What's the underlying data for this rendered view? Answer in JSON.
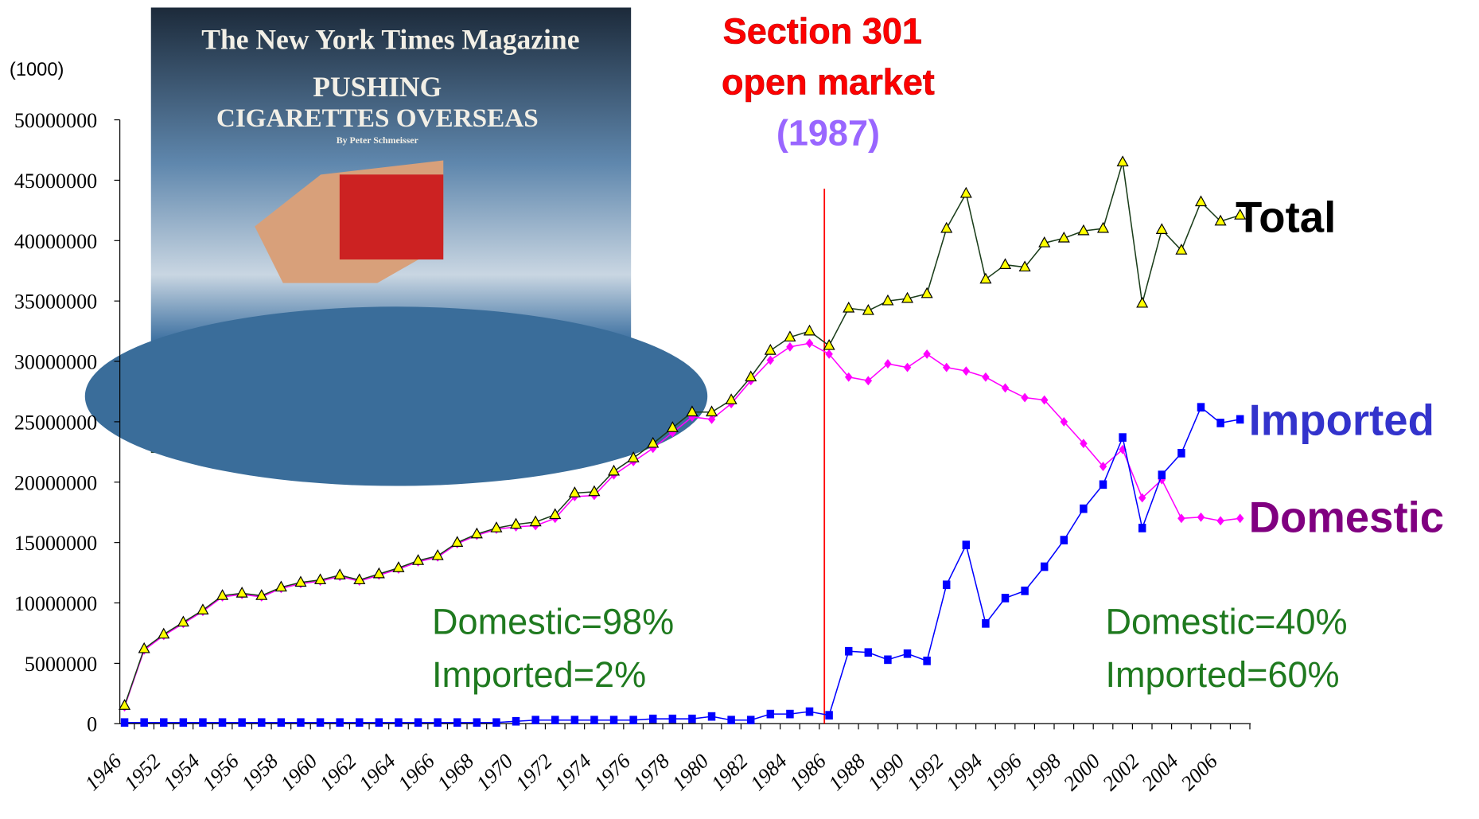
{
  "chart_data": {
    "type": "line",
    "title": [
      "Section 301",
      "open market"
    ],
    "subtitle": "(1987)",
    "y_unit": "(1000)",
    "annotations": [
      [
        "Domestic=98%",
        "Imported=2%"
      ],
      [
        "Domestic=40%",
        "Imported=60%"
      ]
    ],
    "image_texts": [
      "The New York Times Magazine",
      "PUSHING",
      "CIGARETTES OVERSEAS",
      "By Peter Schmeisser"
    ],
    "categories": [
      "1946",
      null,
      "1952",
      null,
      "1954",
      null,
      "1956",
      null,
      "1958",
      null,
      "1960",
      null,
      "1962",
      null,
      "1964",
      null,
      "1966",
      null,
      "1968",
      null,
      "1970",
      null,
      "1972",
      null,
      "1974",
      null,
      "1976",
      null,
      "1978",
      null,
      "1980",
      null,
      "1982",
      null,
      "1984",
      null,
      "1986",
      null,
      "1988",
      null,
      "1990",
      null,
      "1992",
      null,
      "1994",
      null,
      "1996",
      null,
      "1998",
      null,
      "2000",
      null,
      "2002",
      null,
      "2004",
      null,
      "2006",
      null
    ],
    "series": [
      {
        "name": "Domestic",
        "color": "#ff00ff",
        "label_color": "#800080",
        "marker": "diamond",
        "values": [
          1400000,
          6100000,
          7300000,
          8300000,
          9300000,
          10500000,
          10700000,
          10500000,
          11200000,
          11600000,
          11800000,
          12200000,
          11800000,
          12300000,
          12800000,
          13400000,
          13800000,
          14900000,
          15600000,
          16100000,
          16300000,
          16400000,
          17000000,
          18800000,
          18900000,
          20600000,
          21700000,
          22800000,
          24100000,
          25400000,
          25200000,
          26500000,
          28400000,
          30100000,
          31200000,
          31500000,
          30600000,
          28700000,
          28400000,
          29800000,
          29500000,
          30600000,
          29500000,
          29200000,
          28700000,
          27800000,
          27000000,
          26800000,
          25000000,
          23200000,
          21300000,
          22700000,
          18700000,
          20200000,
          17000000,
          17100000,
          16800000,
          17000000
        ]
      },
      {
        "name": "Total",
        "color": "#1a3d1a",
        "label_color": "#000000",
        "marker": "triangle",
        "values": [
          1500000,
          6200000,
          7400000,
          8400000,
          9400000,
          10600000,
          10800000,
          10600000,
          11300000,
          11700000,
          11900000,
          12300000,
          11900000,
          12400000,
          12900000,
          13500000,
          13900000,
          15000000,
          15700000,
          16200000,
          16500000,
          16700000,
          17300000,
          19100000,
          19200000,
          20900000,
          22000000,
          23200000,
          24500000,
          25800000,
          25800000,
          26800000,
          28700000,
          30900000,
          32000000,
          32500000,
          31300000,
          34400000,
          34200000,
          35000000,
          35200000,
          35600000,
          41000000,
          43900000,
          36800000,
          38000000,
          37800000,
          39800000,
          40200000,
          40800000,
          41000000,
          46500000,
          34800000,
          40900000,
          39200000,
          43200000,
          41600000,
          42100000
        ]
      },
      {
        "name": "Imported",
        "color": "#0000ff",
        "label_color": "#3333cc",
        "marker": "square",
        "values": [
          100000,
          100000,
          100000,
          100000,
          100000,
          100000,
          100000,
          100000,
          100000,
          100000,
          100000,
          100000,
          100000,
          100000,
          100000,
          100000,
          100000,
          100000,
          100000,
          100000,
          200000,
          300000,
          300000,
          300000,
          300000,
          300000,
          300000,
          400000,
          400000,
          400000,
          600000,
          300000,
          300000,
          800000,
          800000,
          1000000,
          700000,
          6000000,
          5900000,
          5300000,
          5800000,
          5200000,
          11500000,
          14800000,
          8300000,
          10400000,
          11000000,
          13000000,
          15200000,
          17800000,
          19800000,
          23700000,
          16200000,
          20600000,
          22400000,
          26200000,
          24900000,
          25200000
        ]
      }
    ],
    "marker_line_color": "#ff0000",
    "marker_line_category": "1986",
    "ylim": [
      0,
      50000000
    ],
    "yticks": [
      0,
      5000000,
      10000000,
      15000000,
      20000000,
      25000000,
      30000000,
      35000000,
      40000000,
      45000000,
      50000000
    ]
  }
}
